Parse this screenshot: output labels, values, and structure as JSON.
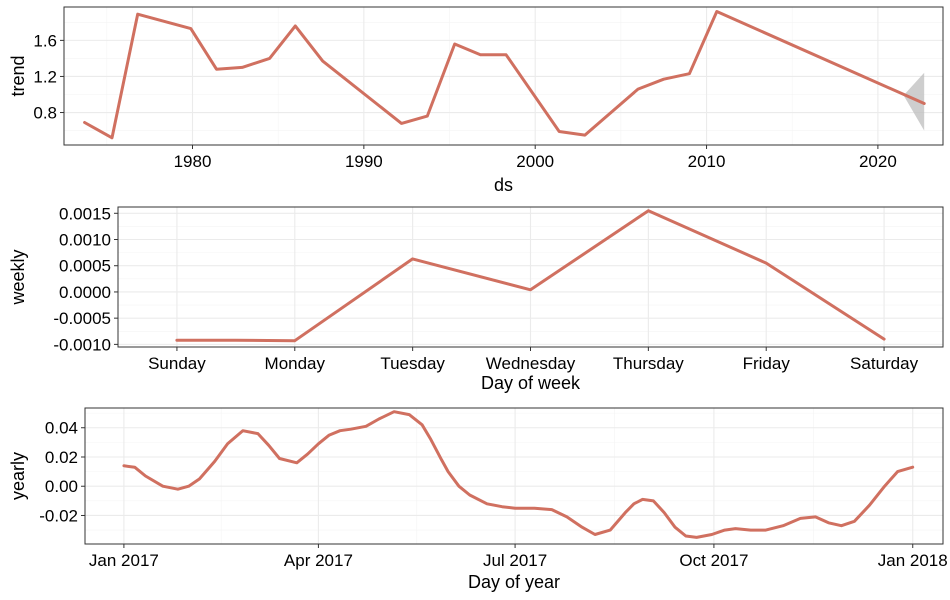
{
  "chart_data": [
    {
      "type": "line",
      "xlabel": "ds",
      "ylabel": "trend",
      "xlim": [
        1972.5,
        2023.8
      ],
      "ylim": [
        0.44,
        1.97
      ],
      "x_ticks": [
        1980,
        1990,
        2000,
        2010,
        2020
      ],
      "x_tick_labels": [
        "1980",
        "1990",
        "2000",
        "2010",
        "2020"
      ],
      "y_ticks": [
        0.8,
        1.2,
        1.6
      ],
      "y_tick_labels": [
        "0.8",
        "1.2",
        "1.6"
      ],
      "grid": true,
      "line_color": "#d07060",
      "band_color": "#bdbdbd",
      "series": [
        {
          "x": [
            1973.7,
            1975.3,
            1976.8,
            1979.9,
            1981.4,
            1982.9,
            1984.5,
            1986.0,
            1987.6,
            1992.2,
            1993.7,
            1995.3,
            1996.8,
            1998.3,
            2001.4,
            2002.9,
            2006.0,
            2007.5,
            2009.0,
            2010.6,
            2022.7
          ],
          "y": [
            0.69,
            0.52,
            1.89,
            1.73,
            1.28,
            1.3,
            1.4,
            1.76,
            1.37,
            0.68,
            0.76,
            1.56,
            1.44,
            1.44,
            0.59,
            0.55,
            1.06,
            1.17,
            1.23,
            1.92,
            0.9
          ]
        }
      ],
      "uncertainty_band": {
        "x": [
          2021.5,
          2022.7,
          2022.7
        ],
        "upper": [
          0.99,
          1.24,
          1.24
        ],
        "lower": [
          0.99,
          0.6,
          0.6
        ]
      }
    },
    {
      "type": "line",
      "xlabel": "Day of week",
      "ylabel": "weekly",
      "categories": [
        "Sunday",
        "Monday",
        "Tuesday",
        "Wednesday",
        "Thursday",
        "Friday",
        "Saturday"
      ],
      "ylim": [
        -0.00105,
        0.00162
      ],
      "y_ticks": [
        -0.001,
        -0.0005,
        0.0,
        0.0005,
        0.001,
        0.0015
      ],
      "y_tick_labels": [
        "-0.0010",
        "-0.0005",
        "0.0000",
        "0.0005",
        "0.0010",
        "0.0015"
      ],
      "grid": true,
      "line_color": "#d07060",
      "series": [
        {
          "x": [
            0,
            0.5,
            1,
            2,
            3,
            4,
            5,
            6
          ],
          "y": [
            -0.00092,
            -0.00092,
            -0.00093,
            0.00063,
            4e-05,
            0.00155,
            0.00055,
            -0.0009
          ]
        }
      ]
    },
    {
      "type": "line",
      "xlabel": "Day of year",
      "ylabel": "yearly",
      "xlim": [
        -18,
        379
      ],
      "ylim": [
        -0.0395,
        0.0535
      ],
      "x_ticks": [
        0,
        90,
        181,
        273,
        365
      ],
      "x_tick_labels": [
        "Jan 2017",
        "Apr 2017",
        "Jul 2017",
        "Oct 2017",
        "Jan 2018"
      ],
      "y_ticks": [
        -0.02,
        0.0,
        0.02,
        0.04
      ],
      "y_tick_labels": [
        "-0.02",
        "0.00",
        "0.02",
        "0.04"
      ],
      "grid": true,
      "line_color": "#d07060",
      "series": [
        {
          "x": [
            0,
            5,
            10,
            18,
            25,
            30,
            35,
            42,
            48,
            55,
            62,
            67,
            72,
            80,
            85,
            90,
            95,
            100,
            105,
            112,
            118,
            125,
            132,
            138,
            142,
            147,
            150,
            155,
            160,
            168,
            175,
            181,
            190,
            198,
            205,
            212,
            218,
            225,
            232,
            236,
            240,
            245,
            250,
            255,
            260,
            265,
            272,
            278,
            283,
            290,
            297,
            305,
            313,
            320,
            326,
            332,
            338,
            345,
            352,
            358,
            365
          ],
          "y": [
            0.014,
            0.013,
            0.007,
            0.0,
            -0.002,
            0.0,
            0.005,
            0.017,
            0.029,
            0.038,
            0.036,
            0.028,
            0.019,
            0.016,
            0.022,
            0.029,
            0.035,
            0.038,
            0.039,
            0.041,
            0.046,
            0.051,
            0.049,
            0.042,
            0.032,
            0.018,
            0.01,
            0.0,
            -0.006,
            -0.012,
            -0.014,
            -0.015,
            -0.015,
            -0.016,
            -0.021,
            -0.028,
            -0.033,
            -0.03,
            -0.018,
            -0.012,
            -0.009,
            -0.01,
            -0.018,
            -0.028,
            -0.034,
            -0.035,
            -0.033,
            -0.03,
            -0.029,
            -0.03,
            -0.03,
            -0.027,
            -0.022,
            -0.021,
            -0.025,
            -0.027,
            -0.024,
            -0.013,
            0.0,
            0.01,
            0.013
          ]
        }
      ]
    }
  ]
}
